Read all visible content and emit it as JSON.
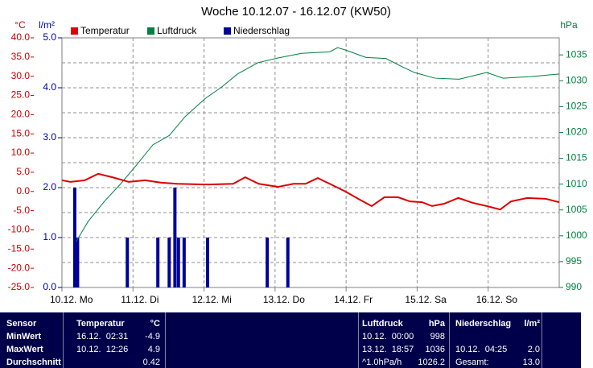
{
  "chart_data": {
    "type": "line",
    "title": "Woche 10.12.07 - 16.12.07 (KW50)",
    "ylabel": "°C",
    "y3label": "l/m²",
    "y2label": "hPa",
    "xlim": [
      0,
      7
    ],
    "xticks": [
      {
        "value": 0,
        "label": "10.12. Mo"
      },
      {
        "value": 1,
        "label": "11.12. Di"
      },
      {
        "value": 2,
        "label": "12.12. Mi"
      },
      {
        "value": 3,
        "label": "13.12. Do"
      },
      {
        "value": 4,
        "label": "14.12. Fr"
      },
      {
        "value": 5,
        "label": "15.12. Sa"
      },
      {
        "value": 6,
        "label": "16.12. So"
      }
    ],
    "ylim": [
      -25,
      40
    ],
    "yticks": [
      {
        "value": 40,
        "label": "40.0"
      },
      {
        "value": 35,
        "label": "35.0"
      },
      {
        "value": 30,
        "label": "30.0"
      },
      {
        "value": 25,
        "label": "25.0"
      },
      {
        "value": 20,
        "label": "20.0"
      },
      {
        "value": 15,
        "label": "15.0"
      },
      {
        "value": 10,
        "label": "10.0"
      },
      {
        "value": 5,
        "label": "5.0"
      },
      {
        "value": 0,
        "label": "0.0"
      },
      {
        "value": -5,
        "label": "-5.0"
      },
      {
        "value": -10,
        "label": "-10.0"
      },
      {
        "value": -15,
        "label": "-15.0"
      },
      {
        "value": -20,
        "label": "-20.0"
      },
      {
        "value": -25,
        "label": "-25.0"
      }
    ],
    "y3lim": [
      0,
      5
    ],
    "y3ticks": [
      {
        "value": 5,
        "label": "5.0"
      },
      {
        "value": 4,
        "label": "4.0"
      },
      {
        "value": 3,
        "label": "3.0"
      },
      {
        "value": 2,
        "label": "2.0"
      },
      {
        "value": 1,
        "label": "1.0"
      },
      {
        "value": 0,
        "label": "0.0"
      }
    ],
    "y2lim": [
      990,
      1038.3
    ],
    "y2ticks": [
      1035,
      1030,
      1025,
      1020,
      1015,
      1010,
      1005,
      1000,
      995,
      990
    ],
    "grid": true,
    "series": [
      {
        "name": "Temperatur",
        "type": "line",
        "axis": "y",
        "color": "#dd0000",
        "x": [
          0,
          0.12,
          0.32,
          0.51,
          0.71,
          0.94,
          1.17,
          1.39,
          1.62,
          2.07,
          2.41,
          2.58,
          2.77,
          3.04,
          3.26,
          3.43,
          3.6,
          3.77,
          4.0,
          4.17,
          4.36,
          4.54,
          4.73,
          4.9,
          5.07,
          5.21,
          5.38,
          5.58,
          5.79,
          5.98,
          6.17,
          6.32,
          6.55,
          6.81,
          7.0
        ],
        "values": [
          2.9,
          2.5,
          2.9,
          4.6,
          3.7,
          2.5,
          2.9,
          2.3,
          2.0,
          1.8,
          2.0,
          3.7,
          2.0,
          1.2,
          2.0,
          2.0,
          3.5,
          2.0,
          -0.1,
          -1.9,
          -3.8,
          -1.5,
          -1.5,
          -2.6,
          -2.8,
          -3.8,
          -3.2,
          -1.7,
          -3.0,
          -3.8,
          -4.7,
          -2.6,
          -1.7,
          -1.9,
          -2.8
        ]
      },
      {
        "name": "Luftdruck",
        "type": "line",
        "axis": "y2",
        "color": "#008040",
        "x": [
          0.2,
          0.37,
          0.6,
          0.83,
          1.05,
          1.28,
          1.51,
          1.73,
          2.02,
          2.25,
          2.47,
          2.76,
          3.04,
          3.37,
          3.77,
          3.88,
          4.0,
          4.28,
          4.56,
          4.79,
          4.96,
          5.25,
          5.59,
          5.98,
          6.21,
          6.6,
          7.0
        ],
        "values": [
          998.9,
          1002.8,
          1006.7,
          1010.1,
          1013.7,
          1017.6,
          1019.4,
          1023.0,
          1026.6,
          1028.8,
          1031.3,
          1033.5,
          1034.4,
          1035.3,
          1035.6,
          1036.4,
          1035.9,
          1034.5,
          1034.3,
          1032.7,
          1031.6,
          1030.5,
          1030.3,
          1031.6,
          1030.5,
          1030.8,
          1031.3
        ]
      },
      {
        "name": "Niederschlag",
        "type": "bar",
        "axis": "y3",
        "color": "#000099",
        "x": [
          0.18,
          0.22,
          0.92,
          1.35,
          1.51,
          1.59,
          1.64,
          1.72,
          2.05,
          2.89,
          3.18
        ],
        "values": [
          2.0,
          1.0,
          1.0,
          1.0,
          1.0,
          2.0,
          1.0,
          1.0,
          1.0,
          1.0,
          1.0
        ]
      }
    ]
  },
  "table": {
    "header": [
      "Sensor",
      "Temperatur",
      "°C",
      "Luftdruck",
      "hPa",
      "Niederschlag",
      "l/m²"
    ],
    "rows": [
      [
        "MinWert",
        "16.12.  02:31",
        "-4.9",
        "10.12.  00:00",
        "998",
        null,
        null
      ],
      [
        "MaxWert",
        "10.12.  12:26",
        "4.9",
        "13.12.  18:57",
        "1036",
        "10.12.  04:25",
        "2.0"
      ],
      [
        "Durchschnitt",
        null,
        "0.42",
        "^1.0hPa/h",
        "1026.2",
        "Gesamt:",
        "13.0"
      ]
    ]
  }
}
